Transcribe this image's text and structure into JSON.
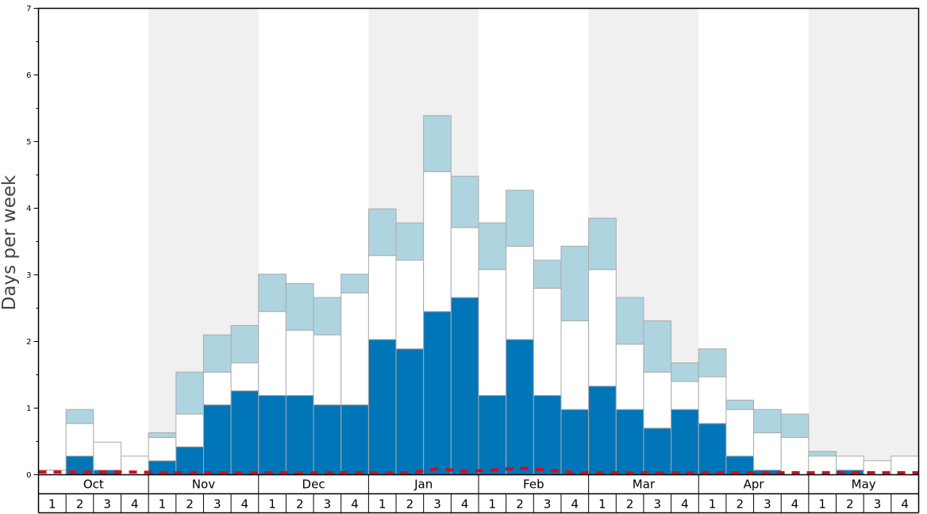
{
  "chart_data": {
    "type": "bar",
    "stacked": true,
    "ylabel": "Days per week",
    "ylim": [
      0,
      7
    ],
    "yticks": [
      "0",
      "1",
      "2",
      "3",
      "4",
      "5",
      "6",
      "7"
    ],
    "months": [
      "Oct",
      "Nov",
      "Dec",
      "Jan",
      "Feb",
      "Mar",
      "Apr",
      "May"
    ],
    "weeks_per_month": [
      "1",
      "2",
      "3",
      "4"
    ],
    "shaded_months": [
      "Nov",
      "Jan",
      "Mar",
      "May"
    ],
    "colors": {
      "dark": "#0075b8",
      "white": "#ffffff",
      "light": "#aed4e0",
      "shade": "#f0f0f0",
      "dashed_line": "#d40c1e",
      "bar_border": "#aaaaaa"
    },
    "series": [
      {
        "values": [
          0,
          0.28,
          0.07,
          0,
          0.21,
          0.42,
          1.05,
          1.26,
          1.19,
          1.19,
          1.05,
          1.05,
          2.03,
          1.89,
          2.45,
          2.66,
          1.19,
          2.03,
          1.19,
          0.98,
          1.33,
          0.98,
          0.7,
          0.98,
          0.77,
          0.28,
          0.07,
          0,
          0,
          0.07,
          0,
          0
        ]
      },
      {
        "values": [
          0.07,
          0.49,
          0.42,
          0.28,
          0.35,
          0.49,
          0.49,
          0.42,
          1.26,
          0.98,
          1.05,
          1.68,
          1.26,
          1.33,
          2.1,
          1.05,
          1.89,
          1.4,
          1.61,
          1.33,
          1.75,
          0.98,
          0.84,
          0.42,
          0.7,
          0.7,
          0.56,
          0.56,
          0.28,
          0.21,
          0.21,
          0.28
        ]
      },
      {
        "values": [
          0,
          0.21,
          0,
          0,
          0.07,
          0.63,
          0.56,
          0.56,
          0.56,
          0.7,
          0.56,
          0.28,
          0.7,
          0.56,
          0.84,
          0.77,
          0.7,
          0.84,
          0.42,
          1.12,
          0.77,
          0.7,
          0.77,
          0.28,
          0.42,
          0.14,
          0.35,
          0.35,
          0.07,
          0,
          0,
          0
        ]
      }
    ],
    "dashed_line_values": [
      0.04,
      0.04,
      0.04,
      0.04,
      0.03,
      0.03,
      0.03,
      0.03,
      0.03,
      0.03,
      0.03,
      0.03,
      0.03,
      0.03,
      0.09,
      0.05,
      0.07,
      0.1,
      0.07,
      0.03,
      0.03,
      0.03,
      0.03,
      0.03,
      0.03,
      0.03,
      0.03,
      0.03,
      0.03,
      0.03,
      0.03,
      0.03
    ]
  }
}
